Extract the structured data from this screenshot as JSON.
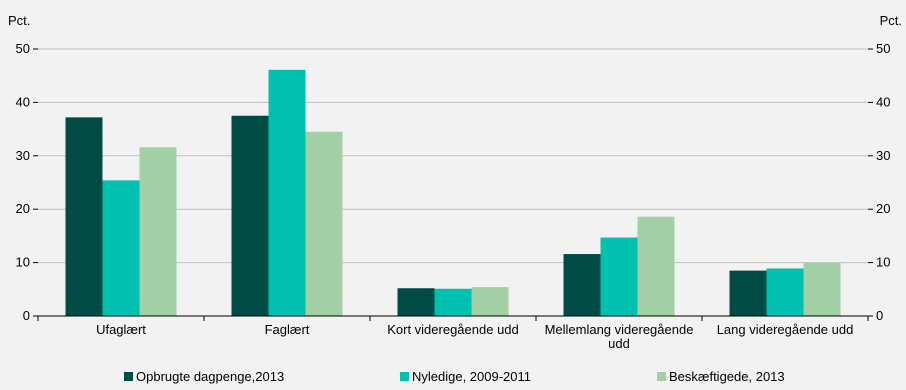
{
  "chart_data": {
    "type": "bar",
    "title": "",
    "xlabel": "",
    "ylabel": "",
    "y_unit_left": "Pct.",
    "y_unit_right": "Pct.",
    "ylim": [
      0,
      50
    ],
    "yticks": [
      0,
      10,
      20,
      30,
      40,
      50
    ],
    "grid": true,
    "legend_position": "bottom",
    "categories": [
      [
        "Ufaglært"
      ],
      [
        "Faglært"
      ],
      [
        "Kort videregående udd"
      ],
      [
        "Mellemlang videregående",
        "udd"
      ],
      [
        "Lang videregående udd"
      ]
    ],
    "series": [
      {
        "name": "Opbrugte dagpenge,2013",
        "color": "#004b44",
        "values": [
          37.2,
          37.5,
          5.2,
          11.6,
          8.5
        ]
      },
      {
        "name": "Nyledige, 2009-2011",
        "color": "#00c0b0",
        "values": [
          25.4,
          46.1,
          5.1,
          14.7,
          8.9
        ]
      },
      {
        "name": "Beskæftigede, 2013",
        "color": "#a3cfa5",
        "values": [
          31.6,
          34.5,
          5.4,
          18.6,
          10.0
        ]
      }
    ]
  }
}
